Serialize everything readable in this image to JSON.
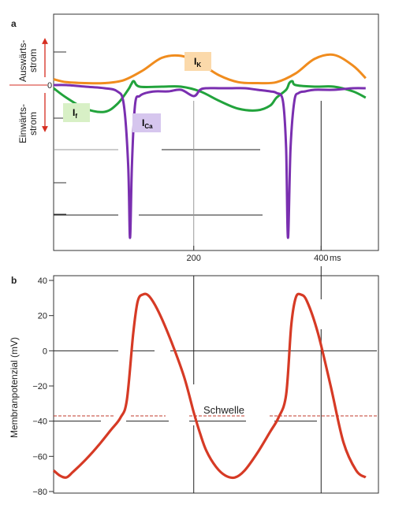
{
  "chart_data": [
    {
      "panel": "a",
      "type": "line",
      "title": "",
      "zero_label": "0",
      "outward_label_line1": "Auswärts-",
      "outward_label_line2": "strom",
      "inward_label_line1": "Einwärts-",
      "inward_label_line2": "strom",
      "xlabel": "ms",
      "xlim": [
        -20,
        490
      ],
      "ylim": [
        -1.0,
        0.55
      ],
      "xticks": [
        200,
        400
      ],
      "series": [
        {
          "name": "IK",
          "label_main": "I",
          "label_sub": "K",
          "color": "#f08c1e",
          "label_bg": "#fbd9aa",
          "x": [
            -20,
            0,
            30,
            60,
            90,
            120,
            150,
            180,
            210,
            240,
            270,
            300,
            330,
            360,
            390,
            420,
            450,
            470
          ],
          "values": [
            0.06,
            0.03,
            0.02,
            0.02,
            0.05,
            0.15,
            0.28,
            0.3,
            0.22,
            0.1,
            0.03,
            0.02,
            0.03,
            0.12,
            0.27,
            0.31,
            0.2,
            0.07
          ]
        },
        {
          "name": "If",
          "label_main": "I",
          "label_sub": "f",
          "color": "#22a33c",
          "label_bg": "#d8f0c6",
          "x": [
            -20,
            0,
            30,
            60,
            80,
            97,
            102,
            106,
            115,
            150,
            180,
            210,
            240,
            270,
            300,
            320,
            330,
            345,
            350,
            355,
            360,
            390,
            420,
            450,
            470
          ],
          "values": [
            -0.02,
            -0.08,
            -0.15,
            -0.17,
            -0.12,
            -0.03,
            0.01,
            0.04,
            -0.01,
            -0.01,
            -0.01,
            -0.04,
            -0.1,
            -0.15,
            -0.16,
            -0.13,
            -0.08,
            -0.03,
            0.02,
            0.04,
            0.0,
            -0.01,
            -0.01,
            -0.04,
            -0.08
          ]
        },
        {
          "name": "ICa",
          "label_main": "I",
          "label_sub": "Ca",
          "color": "#7a2fb0",
          "label_bg": "#d6c6ee",
          "x": [
            -20,
            0,
            30,
            60,
            80,
            90,
            97,
            100,
            103,
            108,
            115,
            125,
            140,
            160,
            180,
            200,
            210,
            220,
            240,
            260,
            280,
            300,
            320,
            330,
            340,
            345,
            348,
            352,
            358,
            365,
            375,
            390,
            420,
            450,
            470
          ],
          "values": [
            0.0,
            0.0,
            -0.01,
            -0.02,
            -0.04,
            -0.12,
            -0.5,
            -0.97,
            -0.5,
            -0.12,
            -0.07,
            -0.05,
            -0.04,
            -0.04,
            -0.03,
            -0.07,
            -0.03,
            -0.02,
            -0.02,
            -0.02,
            -0.02,
            -0.03,
            -0.04,
            -0.05,
            -0.1,
            -0.4,
            -0.97,
            -0.4,
            -0.1,
            -0.05,
            -0.04,
            -0.03,
            -0.03,
            -0.02,
            -0.02
          ]
        }
      ]
    },
    {
      "panel": "b",
      "type": "line",
      "title": "",
      "xlabel": "",
      "ylabel": "Membranpotenzial (mV)",
      "xlim": [
        -20,
        490
      ],
      "ylim": [
        -80,
        40
      ],
      "yticks": [
        "40",
        "20",
        "0",
        "−20",
        "−40",
        "−60",
        "−80"
      ],
      "ytick_values": [
        40,
        20,
        0,
        -20,
        -40,
        -60,
        -80
      ],
      "threshold": {
        "label": "Schwelle",
        "value": -37,
        "color": "#c0392b"
      },
      "series": [
        {
          "name": "",
          "color": "#d63a25",
          "x": [
            -20,
            -10,
            0,
            10,
            30,
            50,
            70,
            85,
            95,
            105,
            112,
            120,
            130,
            145,
            165,
            185,
            200,
            210,
            220,
            235,
            250,
            265,
            280,
            300,
            320,
            333,
            345,
            353,
            360,
            368,
            378,
            395,
            415,
            435,
            455,
            470
          ],
          "values": [
            -68,
            -71,
            -72,
            -69,
            -62,
            -54,
            -45,
            -38,
            -28,
            10,
            28,
            32,
            31,
            22,
            5,
            -15,
            -35,
            -47,
            -57,
            -66,
            -71,
            -72,
            -68,
            -58,
            -46,
            -38,
            -25,
            14,
            30,
            32,
            28,
            10,
            -20,
            -52,
            -68,
            -72
          ]
        }
      ]
    }
  ]
}
